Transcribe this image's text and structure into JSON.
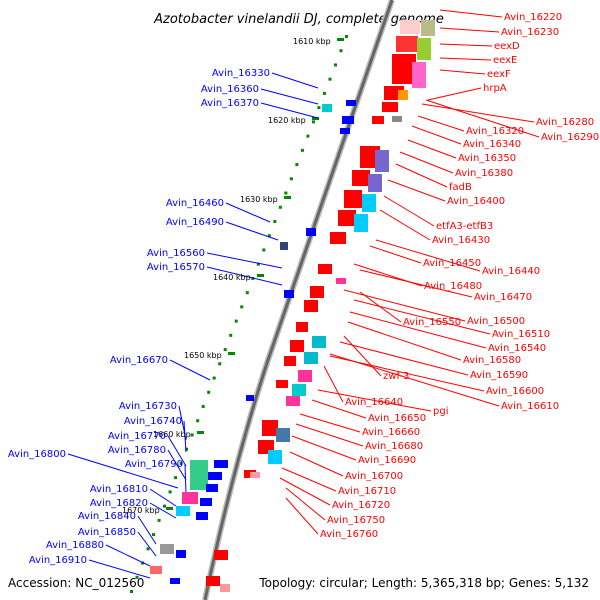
{
  "title": "Azotobacter vinelandii DJ, complete genome",
  "accession": "Accession: NC_012560",
  "topology": "Topology: circular; Length: 5,365,318 bp; Genes: 5,132",
  "colors": {
    "forward": "#ff0000",
    "reverse": "#0000ff",
    "backbone": "#999999",
    "tick": "#008800"
  },
  "kbp_marks": [
    "1610 kbp",
    "1620 kbp",
    "1630 kbp",
    "1640 kbp",
    "1650 kbp",
    "1660 kbp",
    "1670 kbp"
  ],
  "left_labels": [
    "Avin_16330",
    "Avin_16360",
    "Avin_16370",
    "Avin_16460",
    "Avin_16490",
    "Avin_16560",
    "Avin_16570",
    "Avin_16670",
    "Avin_16730",
    "Avin_16740",
    "Avin_16770",
    "Avin_16780",
    "Avin_16800",
    "Avin_16790",
    "Avin_16810",
    "Avin_16820",
    "Avin_16840",
    "Avin_16850",
    "Avin_16880",
    "Avin_16910"
  ],
  "right_labels": [
    "Avin_16220",
    "Avin_16230",
    "eexD",
    "eexE",
    "eexF",
    "hrpA",
    "Avin_16280",
    "Avin_16290",
    "Avin_16320",
    "Avin_16340",
    "Avin_16350",
    "Avin_16380",
    "fadB",
    "Avin_16400",
    "etfA3-etfB3",
    "Avin_16430",
    "Avin_16450",
    "Avin_16440",
    "Avin_16480",
    "Avin_16470",
    "Avin_16500",
    "Avin_16550",
    "Avin_16510",
    "Avin_16540",
    "Avin_16580",
    "zwf-3",
    "Avin_16590",
    "Avin_16600",
    "Avin_16640",
    "Avin_16610",
    "pgi",
    "Avin_16650",
    "Avin_16660",
    "Avin_16680",
    "Avin_16690",
    "Avin_16700",
    "Avin_16710",
    "Avin_16720",
    "Avin_16750",
    "Avin_16760"
  ]
}
